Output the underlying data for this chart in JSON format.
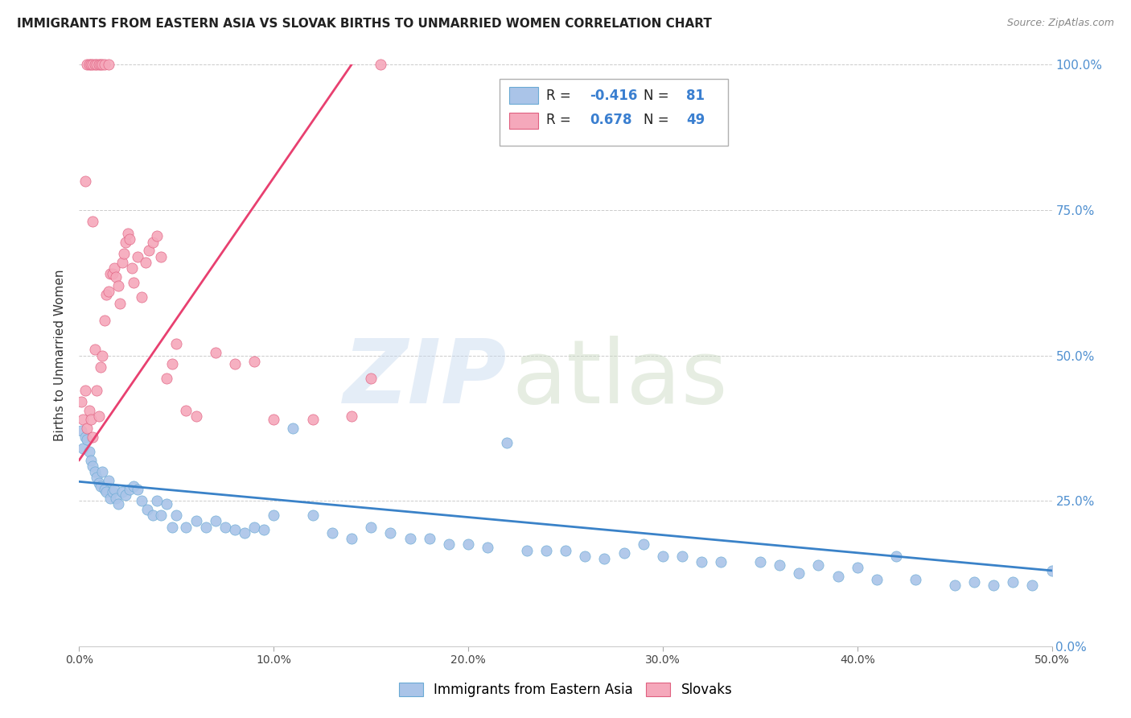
{
  "title": "IMMIGRANTS FROM EASTERN ASIA VS SLOVAK BIRTHS TO UNMARRIED WOMEN CORRELATION CHART",
  "source": "Source: ZipAtlas.com",
  "ylabel": "Births to Unmarried Women",
  "legend_label1": "Immigrants from Eastern Asia",
  "legend_label2": "Slovaks",
  "R1": -0.416,
  "N1": 81,
  "R2": 0.678,
  "N2": 49,
  "color_blue": "#aac4e8",
  "color_pink": "#f5a8bb",
  "color_blue_edge": "#6aaad4",
  "color_pink_edge": "#e06080",
  "color_line_blue": "#3a82c8",
  "color_line_pink": "#e84070",
  "blue_x": [
    0.001,
    0.002,
    0.003,
    0.004,
    0.005,
    0.006,
    0.007,
    0.008,
    0.009,
    0.01,
    0.011,
    0.012,
    0.013,
    0.014,
    0.015,
    0.016,
    0.017,
    0.018,
    0.019,
    0.02,
    0.022,
    0.024,
    0.026,
    0.028,
    0.03,
    0.032,
    0.035,
    0.038,
    0.04,
    0.042,
    0.045,
    0.048,
    0.05,
    0.055,
    0.06,
    0.065,
    0.07,
    0.075,
    0.08,
    0.085,
    0.09,
    0.095,
    0.1,
    0.11,
    0.12,
    0.13,
    0.14,
    0.15,
    0.16,
    0.17,
    0.18,
    0.19,
    0.2,
    0.21,
    0.22,
    0.23,
    0.24,
    0.25,
    0.26,
    0.27,
    0.28,
    0.29,
    0.3,
    0.31,
    0.32,
    0.33,
    0.35,
    0.37,
    0.39,
    0.41,
    0.43,
    0.45,
    0.47,
    0.49,
    0.5,
    0.36,
    0.38,
    0.4,
    0.42,
    0.46,
    0.48
  ],
  "blue_y": [
    0.37,
    0.34,
    0.36,
    0.355,
    0.335,
    0.32,
    0.31,
    0.3,
    0.29,
    0.28,
    0.275,
    0.3,
    0.27,
    0.265,
    0.285,
    0.255,
    0.265,
    0.27,
    0.255,
    0.245,
    0.265,
    0.26,
    0.27,
    0.275,
    0.27,
    0.25,
    0.235,
    0.225,
    0.25,
    0.225,
    0.245,
    0.205,
    0.225,
    0.205,
    0.215,
    0.205,
    0.215,
    0.205,
    0.2,
    0.195,
    0.205,
    0.2,
    0.225,
    0.375,
    0.225,
    0.195,
    0.185,
    0.205,
    0.195,
    0.185,
    0.185,
    0.175,
    0.175,
    0.17,
    0.35,
    0.165,
    0.165,
    0.165,
    0.155,
    0.15,
    0.16,
    0.175,
    0.155,
    0.155,
    0.145,
    0.145,
    0.145,
    0.125,
    0.12,
    0.115,
    0.115,
    0.105,
    0.105,
    0.105,
    0.13,
    0.14,
    0.14,
    0.135,
    0.155,
    0.11,
    0.11
  ],
  "pink_x": [
    0.001,
    0.002,
    0.003,
    0.004,
    0.005,
    0.006,
    0.007,
    0.008,
    0.009,
    0.01,
    0.011,
    0.012,
    0.013,
    0.014,
    0.015,
    0.016,
    0.017,
    0.018,
    0.019,
    0.02,
    0.021,
    0.022,
    0.023,
    0.024,
    0.025,
    0.026,
    0.027,
    0.028,
    0.03,
    0.032,
    0.034,
    0.036,
    0.038,
    0.04,
    0.042,
    0.045,
    0.048,
    0.05,
    0.055,
    0.06,
    0.07,
    0.08,
    0.09,
    0.1,
    0.12,
    0.14,
    0.15,
    0.003,
    0.007
  ],
  "pink_y": [
    0.42,
    0.39,
    0.44,
    0.375,
    0.405,
    0.39,
    0.36,
    0.51,
    0.44,
    0.395,
    0.48,
    0.5,
    0.56,
    0.605,
    0.61,
    0.64,
    0.64,
    0.65,
    0.635,
    0.62,
    0.59,
    0.66,
    0.675,
    0.695,
    0.71,
    0.7,
    0.65,
    0.625,
    0.67,
    0.6,
    0.66,
    0.68,
    0.695,
    0.705,
    0.67,
    0.46,
    0.485,
    0.52,
    0.405,
    0.395,
    0.505,
    0.485,
    0.49,
    0.39,
    0.39,
    0.395,
    0.46,
    0.8,
    0.73
  ],
  "pink_top_x": [
    0.004,
    0.005,
    0.006,
    0.007,
    0.008,
    0.009,
    0.01,
    0.011,
    0.012,
    0.013,
    0.015,
    0.155
  ],
  "pink_top_y": [
    1.0,
    1.0,
    1.0,
    1.0,
    1.0,
    1.0,
    1.0,
    1.0,
    1.0,
    1.0,
    1.0,
    1.0
  ],
  "blue_line_x": [
    0.0,
    0.5
  ],
  "blue_line_y": [
    0.283,
    0.13
  ],
  "pink_line_x": [
    0.0,
    0.14
  ],
  "pink_line_y": [
    0.32,
    1.0
  ],
  "xlim": [
    0.0,
    0.5
  ],
  "ylim": [
    0.0,
    1.0
  ],
  "xticks": [
    0.0,
    0.1,
    0.2,
    0.3,
    0.4,
    0.5
  ],
  "xticklabels": [
    "0.0%",
    "10.0%",
    "20.0%",
    "30.0%",
    "40.0%",
    "50.0%"
  ],
  "yticks": [
    0.0,
    0.25,
    0.5,
    0.75,
    1.0
  ],
  "yticklabels": [
    "0.0%",
    "25.0%",
    "50.0%",
    "75.0%",
    "100.0%"
  ],
  "figsize": [
    14.06,
    8.92
  ],
  "dpi": 100
}
